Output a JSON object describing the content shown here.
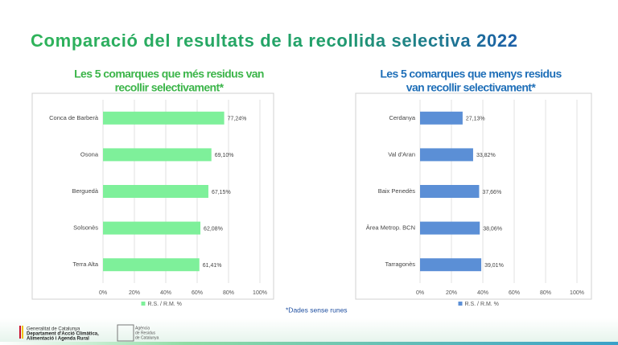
{
  "title": "Comparació del resultats de la recollida selectiva 2022",
  "chart_data": [
    {
      "type": "bar",
      "orientation": "horizontal",
      "title": [
        "Les 5 comarques que més residus van",
        "recollir selectivament*"
      ],
      "title_color": "#3cb54a",
      "categories": [
        "Conca de Barberà",
        "Osona",
        "Berguedà",
        "Solsonès",
        "Terra Alta"
      ],
      "series": [
        {
          "name": "R.S. / R.M. %",
          "color": "#7ef09a",
          "values": [
            77.24,
            69.1,
            67.15,
            62.08,
            61.41
          ],
          "value_labels": [
            "77,24%",
            "69,10%",
            "67,15%",
            "62,08%",
            "61,41%"
          ]
        }
      ],
      "xlim": [
        0,
        100
      ],
      "xticks": [
        {
          "value": 0,
          "label": "0%"
        },
        {
          "value": 20,
          "label": "20%"
        },
        {
          "value": 40,
          "label": "40%"
        },
        {
          "value": 60,
          "label": "60%"
        },
        {
          "value": 80,
          "label": "80%"
        },
        {
          "value": 100,
          "label": "100%"
        }
      ],
      "grid": true,
      "legend": "bottom"
    },
    {
      "type": "bar",
      "orientation": "horizontal",
      "title": [
        "Les 5 comarques que menys residus",
        "van recollir selectivament*"
      ],
      "title_color": "#1f6fb8",
      "categories": [
        "Cerdanya",
        "Val d'Aran",
        "Baix Penedès",
        "Àrea Metrop. BCN",
        "Tarragonès"
      ],
      "series": [
        {
          "name": "R.S. / R.M. %",
          "color": "#5b8fd6",
          "values": [
            27.13,
            33.82,
            37.66,
            38.06,
            39.01
          ],
          "value_labels": [
            "27,13%",
            "33,82%",
            "37,66%",
            "38,06%",
            "39,01%"
          ]
        }
      ],
      "xlim": [
        0,
        100
      ],
      "xticks": [
        {
          "value": 0,
          "label": "0%"
        },
        {
          "value": 20,
          "label": "20%"
        },
        {
          "value": 40,
          "label": "40%"
        },
        {
          "value": 60,
          "label": "60%"
        },
        {
          "value": 80,
          "label": "80%"
        },
        {
          "value": 100,
          "label": "100%"
        }
      ],
      "grid": true,
      "legend": "bottom"
    }
  ],
  "footnote": "*Dades sense runes",
  "footer": {
    "logo1": [
      "Generalitat de Catalunya",
      "Departament d'Acció Climàtica,",
      "Alimentació i Agenda Rural"
    ],
    "logo2": [
      "Agència",
      "de Residus",
      "de Catalunya"
    ]
  }
}
